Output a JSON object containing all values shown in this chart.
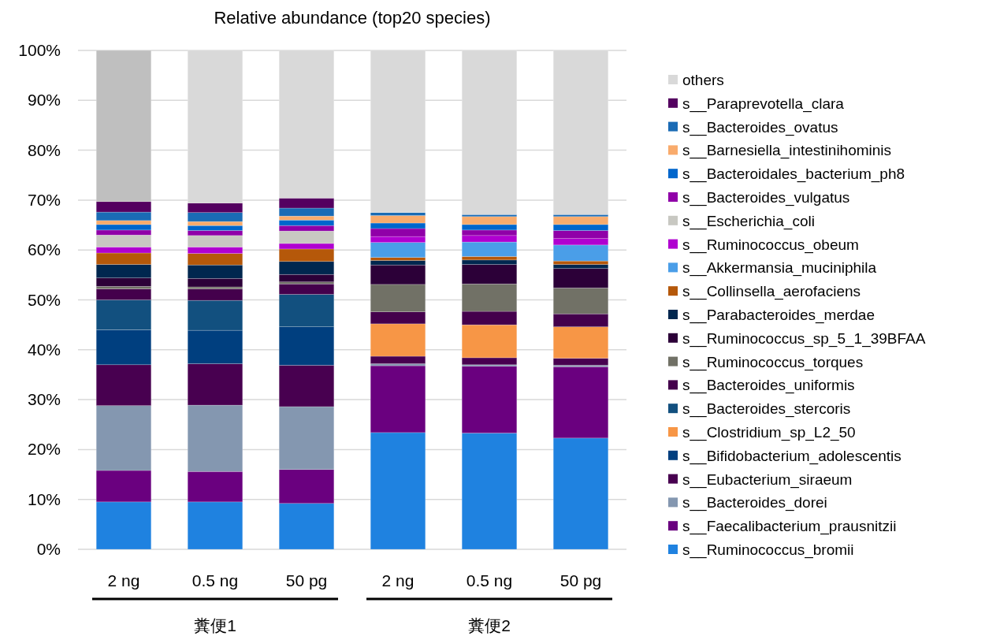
{
  "chart_data": {
    "type": "bar",
    "stacked": true,
    "title": "Relative abundance (top20 species)",
    "categories": [
      "2 ng",
      "0.5 ng",
      "50 pg",
      "2 ng",
      "0.5 ng",
      "50 pg"
    ],
    "annotations": [
      "糞便1",
      "糞便2"
    ],
    "ylim": [
      0,
      100
    ],
    "yticks": [
      {
        "value": 0,
        "label": "0%"
      },
      {
        "value": 10,
        "label": "10%"
      },
      {
        "value": 20,
        "label": "20%"
      },
      {
        "value": 30,
        "label": "30%"
      },
      {
        "value": 40,
        "label": "40%"
      },
      {
        "value": 50,
        "label": "50%"
      },
      {
        "value": 60,
        "label": "60%"
      },
      {
        "value": 70,
        "label": "70%"
      },
      {
        "value": 80,
        "label": "80%"
      },
      {
        "value": 90,
        "label": "90%"
      },
      {
        "value": 100,
        "label": "100%"
      }
    ],
    "grid": "y",
    "legend": "right",
    "series": [
      {
        "name": "s__Ruminococcus_bromii",
        "color": "#1f82e0",
        "values": [
          9.5,
          9.5,
          9.2,
          23.4,
          23.3,
          22.3
        ]
      },
      {
        "name": "s__Faecalibacterium_prausnitzii",
        "color": "#6a007f",
        "values": [
          6.3,
          6.1,
          6.8,
          13.4,
          13.4,
          14.3
        ]
      },
      {
        "name": "s__Bacteroides_dorei",
        "color": "#8497b0",
        "values": [
          13.0,
          13.3,
          12.6,
          0.4,
          0.3,
          0.3
        ]
      },
      {
        "name": "s__Eubacterium_siraeum",
        "color": "#480050",
        "values": [
          8.2,
          8.3,
          8.3,
          1.5,
          1.4,
          1.4
        ]
      },
      {
        "name": "s__Bifidobacterium_adolescentis",
        "color": "#003f7f",
        "values": [
          7.0,
          6.7,
          7.7,
          0,
          0,
          0
        ]
      },
      {
        "name": "s__Clostridium_sp_L2_50",
        "color": "#f79646",
        "values": [
          0,
          0,
          0,
          6.5,
          6.6,
          6.3
        ]
      },
      {
        "name": "s__Bacteroides_stercoris",
        "color": "#12507f",
        "values": [
          6.0,
          6.0,
          6.5,
          0,
          0,
          0
        ]
      },
      {
        "name": "s__Bacteroides_uniformis",
        "color": "#44004c",
        "values": [
          2.2,
          2.3,
          2.1,
          2.4,
          2.7,
          2.6
        ]
      },
      {
        "name": "s__Ruminococcus_torques",
        "color": "#717166",
        "values": [
          0.5,
          0.4,
          0.4,
          5.5,
          5.5,
          5.2
        ]
      },
      {
        "name": "s__Ruminococcus_sp_5_1_39BFAA",
        "color": "#2c0038",
        "values": [
          1.7,
          1.7,
          1.5,
          3.9,
          3.9,
          3.9
        ]
      },
      {
        "name": "s__Parabacteroides_merdae",
        "color": "#00274f",
        "values": [
          2.7,
          2.7,
          2.6,
          0.9,
          0.9,
          0.8
        ]
      },
      {
        "name": "s__Collinsella_aerofaciens",
        "color": "#b5580a",
        "values": [
          2.3,
          2.3,
          2.5,
          0.6,
          0.7,
          0.7
        ]
      },
      {
        "name": "s__Akkermansia_muciniphila",
        "color": "#4a9ee8",
        "values": [
          0,
          0,
          0,
          3.0,
          2.9,
          3.2
        ]
      },
      {
        "name": "s__Ruminococcus_obeum",
        "color": "#b000d0",
        "values": [
          1.2,
          1.3,
          1.1,
          1.2,
          1.3,
          1.3
        ]
      },
      {
        "name": "s__Escherichia_coli",
        "color": "#c8c8c2",
        "values": [
          2.4,
          2.3,
          2.5,
          0,
          0,
          0
        ]
      },
      {
        "name": "s__Bacteroides_vulgatus",
        "color": "#9000a8",
        "values": [
          1.0,
          1.0,
          1.1,
          1.6,
          1.1,
          1.6
        ]
      },
      {
        "name": "s__Bacteroidales_bacterium_ph8",
        "color": "#0066cc",
        "values": [
          1.1,
          1.0,
          1.1,
          1.1,
          1.1,
          1.2
        ]
      },
      {
        "name": "s__Barnesiella_intestinihominis",
        "color": "#f9ab6c",
        "values": [
          0.8,
          0.8,
          0.8,
          1.5,
          1.6,
          1.6
        ]
      },
      {
        "name": "s__Bacteroides_ovatus",
        "color": "#1a6bb5",
        "values": [
          1.7,
          1.8,
          1.6,
          0.6,
          0.4,
          0.4
        ]
      },
      {
        "name": "s__Paraprevotella_clara",
        "color": "#540060",
        "values": [
          2.1,
          1.9,
          2.0,
          0,
          0,
          0
        ]
      },
      {
        "name": "others",
        "color": "#d9d9d9",
        "colors": [
          "#bfbfbf",
          "#d9d9d9",
          "#d9d9d9",
          "#d9d9d9",
          "#d9d9d9",
          "#d9d9d9"
        ],
        "values": [
          30.3,
          30.6,
          29.6,
          32.5,
          32.9,
          32.9
        ]
      }
    ]
  }
}
